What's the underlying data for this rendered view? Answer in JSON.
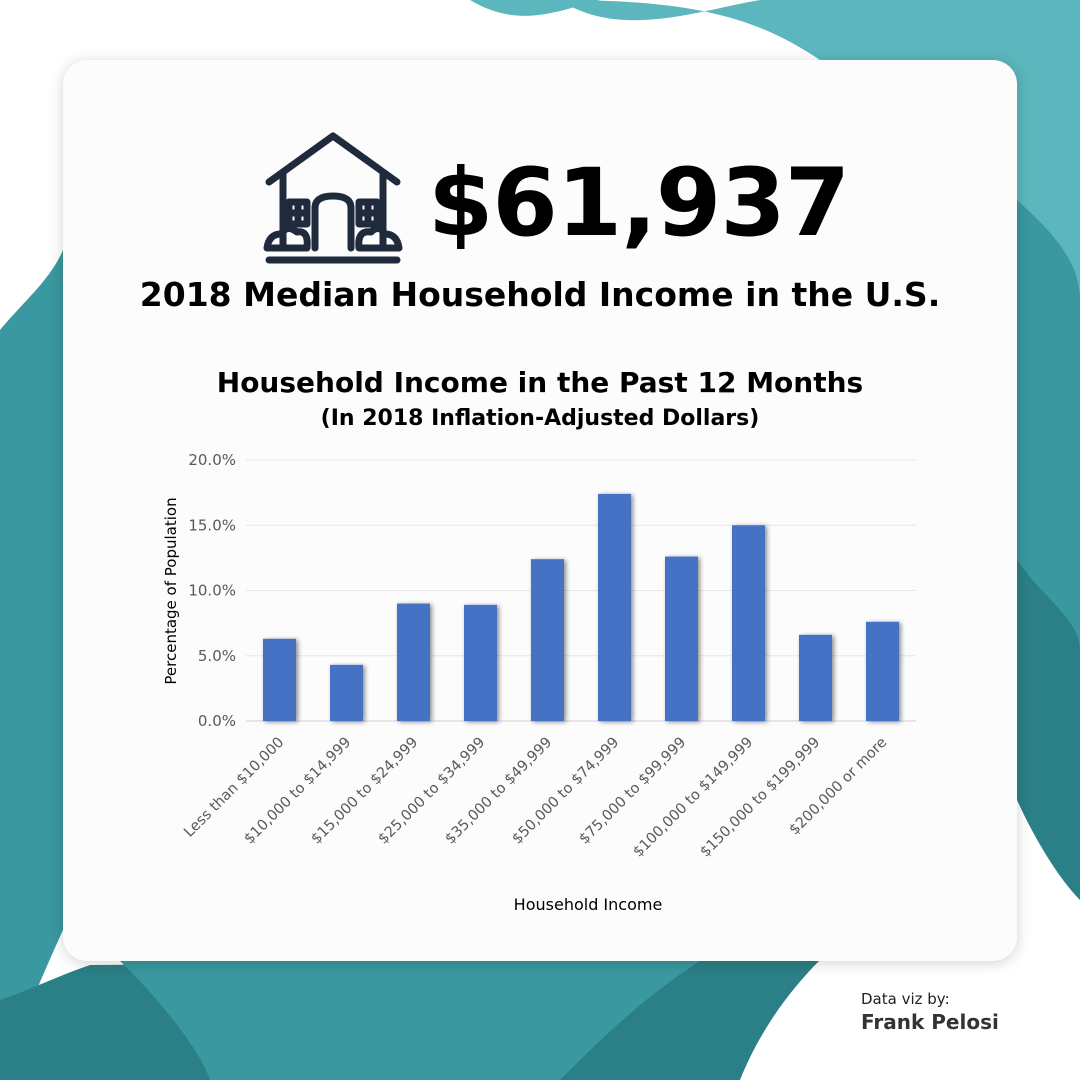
{
  "hero": {
    "value": "$61,937",
    "subtitle": "2018 Median Household Income in the U.S.",
    "icon": "house-icon"
  },
  "credit": {
    "label": "Data viz by:",
    "name": "Frank Pelosi"
  },
  "colors": {
    "bar": "#4472C4",
    "grid": "#e6e6e6",
    "tick_text": "#595959",
    "icon": "#1f2a3c",
    "teal_dark": "#2b7f86",
    "teal_mid": "#3a98a0",
    "teal_light": "#5bb7bd"
  },
  "chart_data": {
    "type": "bar",
    "title": "Household Income in the Past 12 Months",
    "subtitle": "(In 2018 Inflation-Adjusted Dollars)",
    "xlabel": "Household Income",
    "ylabel": "Percentage of Population",
    "categories": [
      "Less than $10,000",
      "$10,000 to $14,999",
      "$15,000 to $24,999",
      "$25,000 to $34,999",
      "$35,000 to $49,999",
      "$50,000 to $74,999",
      "$75,000 to $99,999",
      "$100,000 to $149,999",
      "$150,000 to $199,999",
      "$200,000 or more"
    ],
    "values": [
      6.3,
      4.3,
      9.0,
      8.9,
      12.4,
      17.4,
      12.6,
      15.0,
      6.6,
      7.6
    ],
    "ylim": [
      0,
      20
    ],
    "yticks": [
      "0.0%",
      "5.0%",
      "10.0%",
      "15.0%",
      "20.0%"
    ],
    "grid": true,
    "legend": "none"
  }
}
